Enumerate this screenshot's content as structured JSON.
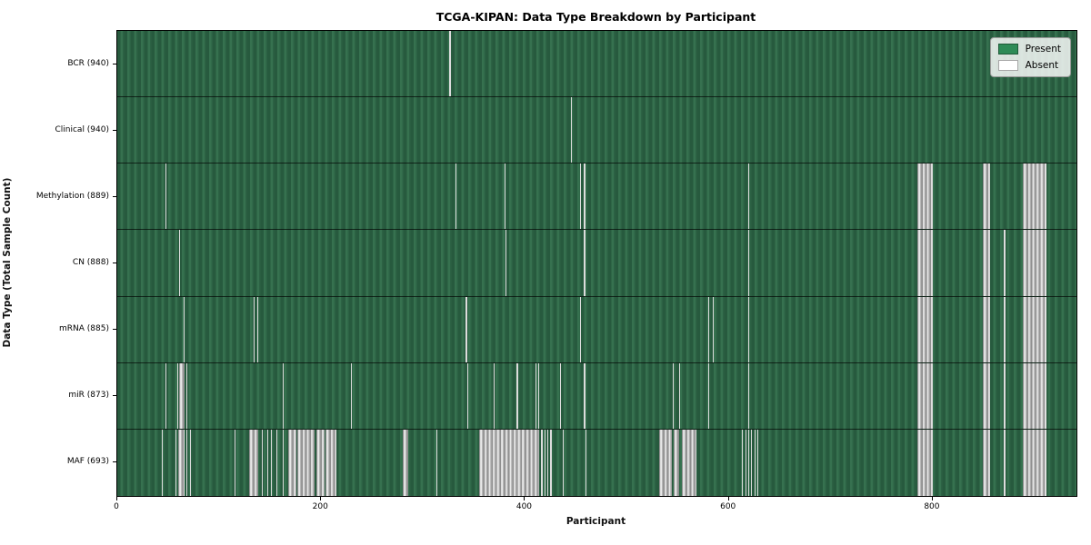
{
  "title": "TCGA-KIPAN: Data Type Breakdown by Participant",
  "xlabel": "Participant",
  "ylabel": "Data Type (Total Sample Count)",
  "legend": {
    "items": [
      {
        "label": "Present",
        "color": "#2e8b57"
      },
      {
        "label": "Absent",
        "color": "#ffffff"
      }
    ]
  },
  "colors": {
    "present_green": "#2e8b57",
    "plot_green_dark": "#275a3e",
    "plot_green_light": "#36714f",
    "absent_thin": "#dcdcdc",
    "absent_block_dark": "#8f8f8f",
    "absent_block_light": "#efefef"
  },
  "chart_data": {
    "type": "heatmap",
    "orientation": "rows are data types, x axis is participant index",
    "x_max": 941,
    "x_ticks": [
      0,
      200,
      400,
      600,
      800
    ],
    "legend_position": "upper right",
    "rows": [
      {
        "label": "BCR (940)",
        "data_type": "BCR",
        "present_count": 940,
        "absent_ranges": [
          [
            326,
            327
          ]
        ]
      },
      {
        "label": "Clinical (940)",
        "data_type": "Clinical",
        "present_count": 940,
        "absent_ranges": [
          [
            445,
            446
          ]
        ]
      },
      {
        "label": "Methylation (889)",
        "data_type": "Methylation",
        "present_count": 889,
        "absent_ranges": [
          [
            47,
            48
          ],
          [
            332,
            333
          ],
          [
            380,
            381
          ],
          [
            454,
            455
          ],
          [
            458,
            459
          ],
          [
            619,
            620
          ],
          [
            785,
            800
          ],
          [
            849,
            856
          ],
          [
            888,
            912
          ]
        ]
      },
      {
        "label": "CN (888)",
        "data_type": "CN",
        "present_count": 888,
        "absent_ranges": [
          [
            61,
            62
          ],
          [
            381,
            382
          ],
          [
            458,
            459
          ],
          [
            619,
            620
          ],
          [
            785,
            800
          ],
          [
            849,
            856
          ],
          [
            870,
            871
          ],
          [
            888,
            912
          ]
        ]
      },
      {
        "label": "mRNA (885)",
        "data_type": "mRNA",
        "present_count": 885,
        "absent_ranges": [
          [
            65,
            66
          ],
          [
            134,
            135
          ],
          [
            137,
            138
          ],
          [
            342,
            343
          ],
          [
            454,
            455
          ],
          [
            580,
            581
          ],
          [
            584,
            585
          ],
          [
            619,
            620
          ],
          [
            785,
            800
          ],
          [
            849,
            856
          ],
          [
            870,
            871
          ],
          [
            888,
            912
          ]
        ]
      },
      {
        "label": "miR (873)",
        "data_type": "miR",
        "present_count": 873,
        "absent_ranges": [
          [
            47,
            48
          ],
          [
            59,
            60
          ],
          [
            61,
            66
          ],
          [
            68,
            69
          ],
          [
            162,
            163
          ],
          [
            229,
            230
          ],
          [
            343,
            344
          ],
          [
            369,
            370
          ],
          [
            392,
            393
          ],
          [
            410,
            411
          ],
          [
            413,
            414
          ],
          [
            434,
            435
          ],
          [
            458,
            459
          ],
          [
            545,
            546
          ],
          [
            551,
            552
          ],
          [
            580,
            581
          ],
          [
            619,
            620
          ],
          [
            785,
            800
          ],
          [
            849,
            856
          ],
          [
            870,
            871
          ],
          [
            888,
            912
          ]
        ]
      },
      {
        "label": "MAF (693)",
        "data_type": "MAF",
        "present_count": 693,
        "absent_ranges": [
          [
            44,
            45
          ],
          [
            57,
            58
          ],
          [
            60,
            66
          ],
          [
            68,
            69
          ],
          [
            71,
            72
          ],
          [
            115,
            116
          ],
          [
            129,
            138
          ],
          [
            142,
            143
          ],
          [
            147,
            148
          ],
          [
            151,
            152
          ],
          [
            156,
            157
          ],
          [
            162,
            163
          ],
          [
            168,
            176
          ],
          [
            177,
            194
          ],
          [
            195,
            203
          ],
          [
            204,
            215
          ],
          [
            280,
            285
          ],
          [
            313,
            314
          ],
          [
            355,
            414
          ],
          [
            416,
            417
          ],
          [
            419,
            420
          ],
          [
            422,
            423
          ],
          [
            425,
            426
          ],
          [
            437,
            438
          ],
          [
            459,
            460
          ],
          [
            532,
            544
          ],
          [
            546,
            551
          ],
          [
            554,
            568
          ],
          [
            613,
            614
          ],
          [
            616,
            617
          ],
          [
            619,
            620
          ],
          [
            622,
            623
          ],
          [
            625,
            626
          ],
          [
            628,
            629
          ],
          [
            785,
            800
          ],
          [
            849,
            856
          ],
          [
            870,
            871
          ],
          [
            888,
            912
          ]
        ]
      }
    ]
  }
}
